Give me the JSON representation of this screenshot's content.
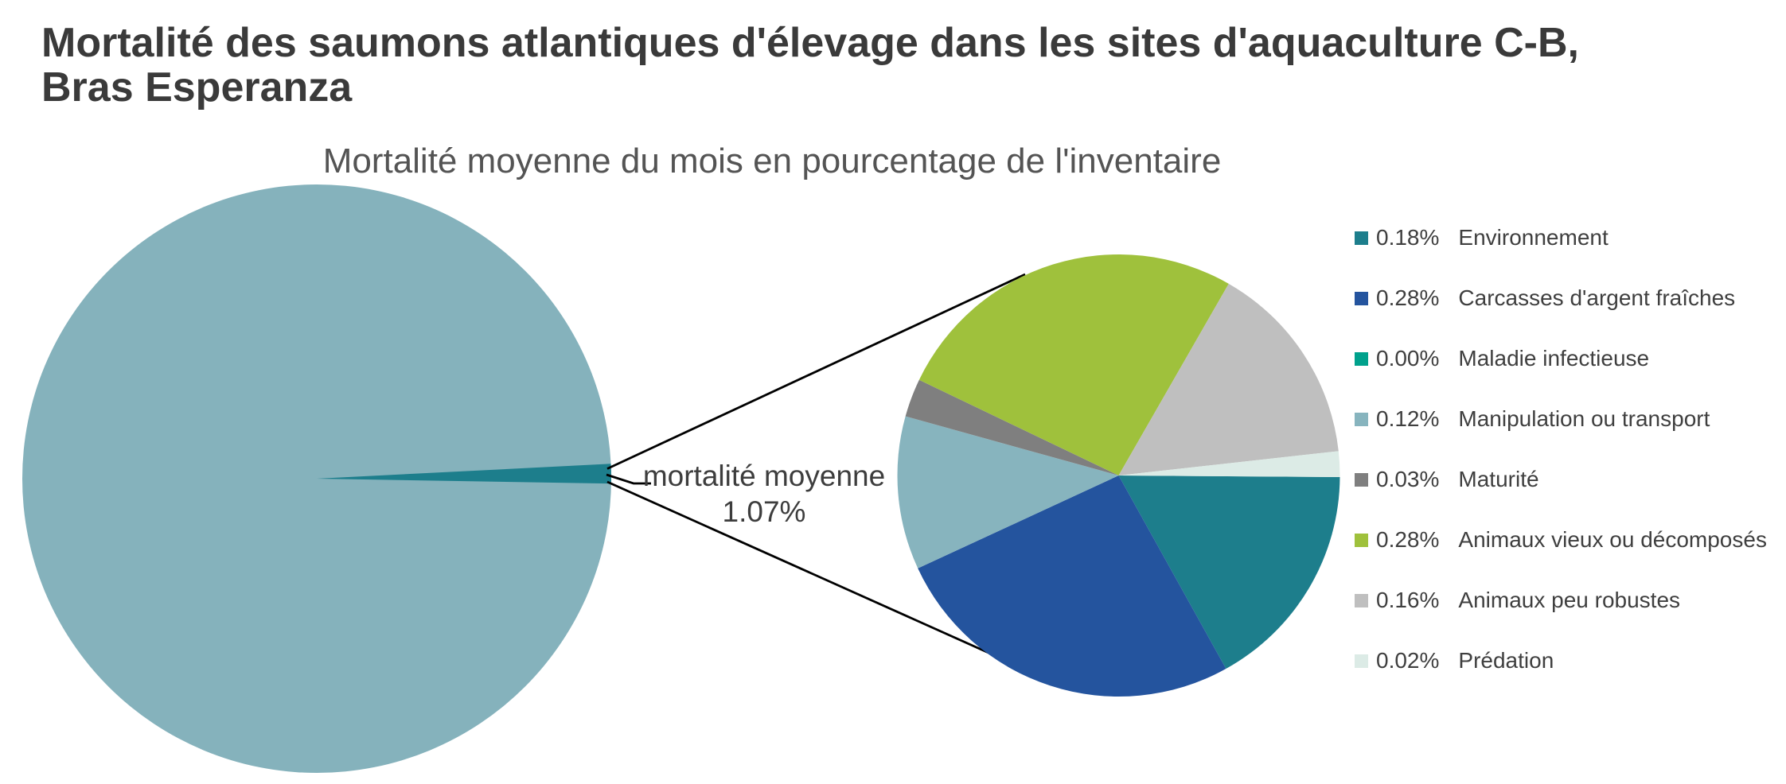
{
  "header": {
    "title_line1": "Mortalité des saumons atlantiques d'élevage dans les sites d'aquaculture C-B,",
    "title_line2": "Bras Esperanza",
    "subtitle": "Mortalité moyenne du mois en pourcentage de l'inventaire"
  },
  "callout": {
    "label": "mortalité moyenne",
    "value": "1.07%"
  },
  "chart_data": {
    "type": "pie",
    "variant": "pie-of-pie",
    "title": "Mortalité des saumons atlantiques d'élevage dans les sites d'aquaculture C-B, Bras Esperanza",
    "subtitle": "Mortalité moyenne du mois en pourcentage de l'inventaire",
    "units": "percent of inventory",
    "total_percent": 1.07,
    "total_label": "mortalité moyenne 1.07%",
    "legend_position": "right",
    "main_pie": {
      "rest_percent": 98.93,
      "rest_color": "#85b2bc",
      "detail_percent": 1.07,
      "detail_color": "#1d7e8c"
    },
    "categories": [
      {
        "label": "Environnement",
        "value": 0.18,
        "display": "0.18%",
        "color": "#1d7e8c"
      },
      {
        "label": "Carcasses d'argent fraîches",
        "value": 0.28,
        "display": "0.28%",
        "color": "#24549e"
      },
      {
        "label": "Maladie infectieuse",
        "value": 0.0,
        "display": "0.00%",
        "color": "#00a18c"
      },
      {
        "label": "Manipulation ou transport",
        "value": 0.12,
        "display": "0.12%",
        "color": "#87b4be"
      },
      {
        "label": "Maturité",
        "value": 0.03,
        "display": "0.03%",
        "color": "#7f7f7f"
      },
      {
        "label": "Animaux vieux ou décomposés",
        "value": 0.28,
        "display": "0.28%",
        "color": "#9fc13c"
      },
      {
        "label": "Animaux peu robustes",
        "value": 0.16,
        "display": "0.16%",
        "color": "#bfbfbf"
      },
      {
        "label": "Prédation",
        "value": 0.02,
        "display": "0.02%",
        "color": "#dcebe6"
      }
    ]
  }
}
